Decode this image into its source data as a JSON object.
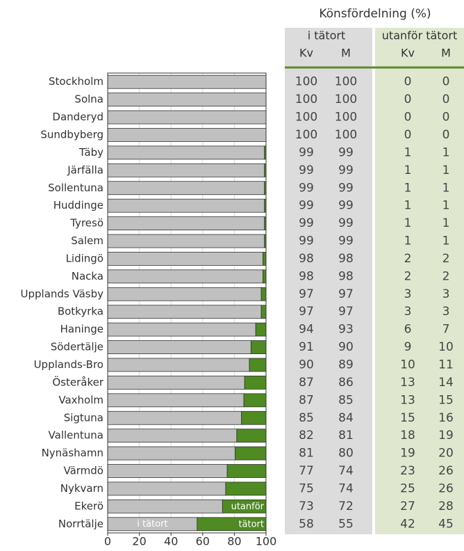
{
  "chart_data": {
    "type": "bar",
    "orientation": "horizontal",
    "stacked": true,
    "categories": [
      "Stockholm",
      "Solna",
      "Danderyd",
      "Sundbyberg",
      "Täby",
      "Järfälla",
      "Sollentuna",
      "Huddinge",
      "Tyresö",
      "Salem",
      "Lidingö",
      "Nacka",
      "Upplands Väsby",
      "Botkyrka",
      "Haninge",
      "Södertälje",
      "Upplands-Bro",
      "Österåker",
      "Vaxholm",
      "Sigtuna",
      "Vallentuna",
      "Nynäshamn",
      "Värmdö",
      "Nykvarn",
      "Ekerö",
      "Norrtälje"
    ],
    "series": [
      {
        "name": "i tätort",
        "color": "#c0c0c0",
        "values": [
          100,
          100,
          100,
          100,
          99,
          99,
          99,
          99,
          99,
          99,
          98,
          98,
          97,
          97,
          93.5,
          90.5,
          89.5,
          86.5,
          86,
          84.5,
          81.5,
          80.5,
          75.5,
          74.5,
          72.5,
          56.5
        ]
      },
      {
        "name": "utanför tätort",
        "color": "#4f8a22",
        "values": [
          0,
          0,
          0,
          0,
          1,
          1,
          1,
          1,
          1,
          1,
          2,
          2,
          3,
          3,
          6.5,
          9.5,
          10.5,
          13.5,
          14,
          15.5,
          18.5,
          19.5,
          24.5,
          25.5,
          27.5,
          43.5
        ]
      }
    ],
    "xlim": [
      0,
      100
    ],
    "xticks": [
      0,
      20,
      40,
      60,
      80,
      100
    ],
    "grid": true
  },
  "table": {
    "title": "Könsfördelning (%)",
    "groups": [
      "i tätort",
      "utanför tätort"
    ],
    "columns": [
      "Kv",
      "M",
      "Kv",
      "M"
    ],
    "rows": [
      [
        100,
        100,
        0,
        0
      ],
      [
        100,
        100,
        0,
        0
      ],
      [
        100,
        100,
        0,
        0
      ],
      [
        100,
        100,
        0,
        0
      ],
      [
        99,
        99,
        1,
        1
      ],
      [
        99,
        99,
        1,
        1
      ],
      [
        99,
        99,
        1,
        1
      ],
      [
        99,
        99,
        1,
        1
      ],
      [
        99,
        99,
        1,
        1
      ],
      [
        99,
        99,
        1,
        1
      ],
      [
        98,
        98,
        2,
        2
      ],
      [
        98,
        98,
        2,
        2
      ],
      [
        97,
        97,
        3,
        3
      ],
      [
        97,
        97,
        3,
        3
      ],
      [
        94,
        93,
        6,
        7
      ],
      [
        91,
        90,
        9,
        10
      ],
      [
        90,
        89,
        10,
        11
      ],
      [
        87,
        86,
        13,
        14
      ],
      [
        87,
        85,
        13,
        15
      ],
      [
        85,
        84,
        15,
        16
      ],
      [
        82,
        81,
        18,
        19
      ],
      [
        81,
        80,
        19,
        20
      ],
      [
        77,
        74,
        23,
        26
      ],
      [
        75,
        74,
        25,
        26
      ],
      [
        73,
        72,
        27,
        28
      ],
      [
        58,
        55,
        42,
        45
      ]
    ]
  }
}
